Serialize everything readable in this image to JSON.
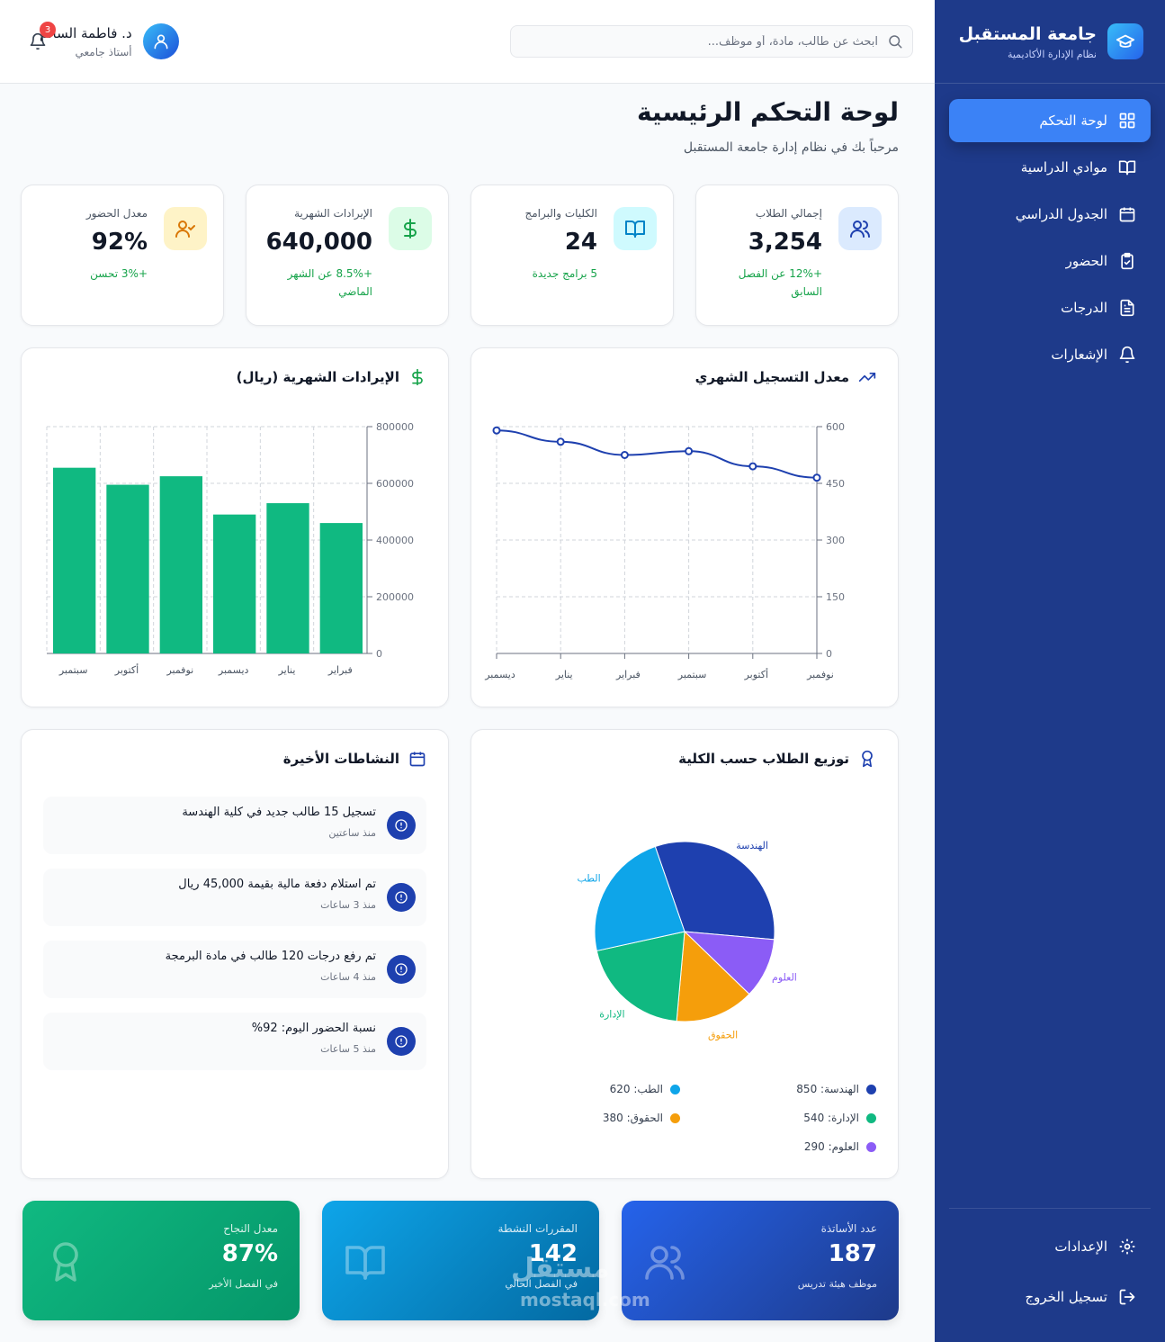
{
  "brand": {
    "title": "جامعة المستقبل",
    "subtitle": "نظام الإدارة الأكاديمية"
  },
  "sidebar": {
    "items": [
      {
        "label": "لوحة التحكم",
        "icon": "grid-icon",
        "active": true
      },
      {
        "label": "موادي الدراسية",
        "icon": "book-icon"
      },
      {
        "label": "الجدول الدراسي",
        "icon": "calendar-icon"
      },
      {
        "label": "الحضور",
        "icon": "clipboard-check-icon"
      },
      {
        "label": "الدرجات",
        "icon": "file-text-icon"
      },
      {
        "label": "الإشعارات",
        "icon": "bell-icon"
      }
    ],
    "bottom": [
      {
        "label": "الإعدادات",
        "icon": "gear-icon"
      },
      {
        "label": "تسجيل الخروج",
        "icon": "logout-icon"
      }
    ]
  },
  "header": {
    "search_placeholder": "ابحث عن طالب، مادة، أو موظف...",
    "user_name": "د. فاطمة السالم",
    "user_role": "أستاذ جامعي",
    "notifications": "3"
  },
  "page": {
    "title": "لوحة التحكم الرئيسية",
    "subtitle": "مرحباً بك في نظام إدارة جامعة المستقبل"
  },
  "stats": [
    {
      "label": "إجمالي الطلاب",
      "value": "3,254",
      "change": "+12% عن الفصل السابق",
      "icon": "users-icon",
      "color": "#1e40af",
      "bg": "#dbeafe"
    },
    {
      "label": "الكليات والبرامج",
      "value": "24",
      "change": "5 برامج جديدة",
      "icon": "book-open-icon",
      "color": "#0284c7",
      "bg": "#cffafe"
    },
    {
      "label": "الإيرادات الشهرية",
      "value": "640,000",
      "change": "+8.5% عن الشهر الماضي",
      "icon": "dollar-icon",
      "color": "#16a34a",
      "bg": "#dcfce7"
    },
    {
      "label": "معدل الحضور",
      "value": "92%",
      "change": "+3% تحسن",
      "icon": "user-check-icon",
      "color": "#d97706",
      "bg": "#fef3c7"
    }
  ],
  "enrollment_panel": {
    "title": "معدل التسجيل الشهري",
    "icon": "trending-up-icon"
  },
  "revenue_panel": {
    "title": "الإيرادات الشهرية (ريال)",
    "icon": "dollar-icon"
  },
  "distribution_panel": {
    "title": "توزيع الطلاب حسب الكلية",
    "icon": "award-icon"
  },
  "activities_panel": {
    "title": "النشاطات الأخيرة",
    "icon": "calendar-icon",
    "items": [
      {
        "text": "تسجيل 15 طالب جديد في كلية الهندسة",
        "time": "منذ ساعتين"
      },
      {
        "text": "تم استلام دفعة مالية بقيمة 45,000 ريال",
        "time": "منذ 3 ساعات"
      },
      {
        "text": "تم رفع درجات 120 طالب في مادة البرمجة",
        "time": "منذ 4 ساعات"
      },
      {
        "text": "نسبة الحضور اليوم: 92%",
        "time": "منذ 5 ساعات"
      }
    ]
  },
  "bottom_cards": [
    {
      "label": "عدد الأساتذة",
      "value": "187",
      "sub": "موظف هيئة تدريس",
      "icon": "users-icon"
    },
    {
      "label": "المقررات النشطة",
      "value": "142",
      "sub": "في الفصل الحالي",
      "icon": "book-open-icon"
    },
    {
      "label": "معدل النجاح",
      "value": "87%",
      "sub": "في الفصل الأخير",
      "icon": "award-icon"
    }
  ],
  "watermark": {
    "text": "مستقل",
    "url": "mostaql.com"
  },
  "chart_data": [
    {
      "type": "line",
      "title": "معدل التسجيل الشهري",
      "categories": [
        "ديسمبر",
        "يناير",
        "فبراير",
        "سبتمبر",
        "أكتوبر",
        "نوفمبر"
      ],
      "values": [
        590,
        560,
        525,
        535,
        495,
        465
      ],
      "ylim": [
        0,
        600
      ],
      "yticks": [
        "0",
        "150",
        "300",
        "450",
        "600"
      ],
      "color": "#1e40af",
      "grid": true
    },
    {
      "type": "bar",
      "title": "الإيرادات الشهرية (ريال)",
      "categories": [
        "سبتمبر",
        "أكتوبر",
        "نوفمبر",
        "ديسمبر",
        "يناير",
        "فبراير"
      ],
      "values": [
        655000,
        595000,
        625000,
        490000,
        530000,
        460000
      ],
      "ylim": [
        0,
        800000
      ],
      "yticks": [
        "0",
        "200000",
        "400000",
        "600000",
        "800000"
      ],
      "color": "#10b981",
      "grid": true
    },
    {
      "type": "pie",
      "title": "توزيع الطلاب حسب الكلية",
      "slices": [
        {
          "name": "الهندسة",
          "value": 850,
          "color": "#1e40af"
        },
        {
          "name": "العلوم",
          "value": 290,
          "color": "#8b5cf6"
        },
        {
          "name": "الحقوق",
          "value": 380,
          "color": "#f59e0b"
        },
        {
          "name": "الإدارة",
          "value": 540,
          "color": "#10b981"
        },
        {
          "name": "الطب",
          "value": 620,
          "color": "#0ea5e9"
        }
      ],
      "legend": [
        {
          "name": "الهندسة",
          "value": "850",
          "color": "#1e40af"
        },
        {
          "name": "الطب",
          "value": "620",
          "color": "#0ea5e9"
        },
        {
          "name": "الإدارة",
          "value": "540",
          "color": "#10b981"
        },
        {
          "name": "الحقوق",
          "value": "380",
          "color": "#f59e0b"
        },
        {
          "name": "العلوم",
          "value": "290",
          "color": "#8b5cf6"
        }
      ]
    }
  ]
}
